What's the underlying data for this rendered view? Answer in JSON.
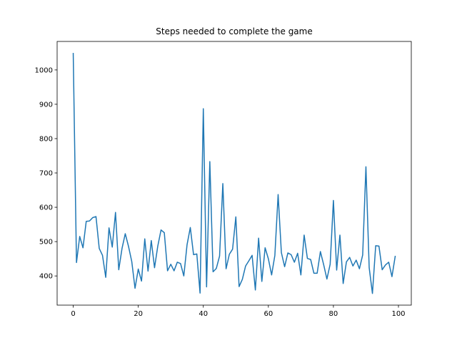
{
  "chart_data": {
    "type": "line",
    "title": "Steps needed to complete the game",
    "xlabel": "",
    "ylabel": "",
    "xlim": [
      -4.95,
      103.95
    ],
    "ylim": [
      315,
      1083
    ],
    "xticks": [
      0,
      20,
      40,
      60,
      80,
      100
    ],
    "yticks": [
      400,
      500,
      600,
      700,
      800,
      900,
      1000
    ],
    "grid": false,
    "line_color": "#1f77b4",
    "series": [
      {
        "x": [
          0,
          1,
          2,
          3,
          4,
          5,
          6,
          7,
          8,
          9,
          10,
          11,
          12,
          13,
          14,
          15,
          16,
          17,
          18,
          19,
          20,
          21,
          22,
          23,
          24,
          25,
          26,
          27,
          28,
          29,
          30,
          31,
          32,
          33,
          34,
          35,
          36,
          37,
          38,
          39,
          40,
          41,
          42,
          43,
          44,
          45,
          46,
          47,
          48,
          49,
          50,
          51,
          52,
          53,
          54,
          55,
          56,
          57,
          58,
          59,
          60,
          61,
          62,
          63,
          64,
          65,
          66,
          67,
          68,
          69,
          70,
          71,
          72,
          73,
          74,
          75,
          76,
          77,
          78,
          79,
          80,
          81,
          82,
          83,
          84,
          85,
          86,
          87,
          88,
          89,
          90,
          91,
          92,
          93,
          94,
          95,
          96,
          97,
          98,
          99
        ],
        "y": [
          1048,
          439,
          515,
          482,
          559,
          560,
          570,
          573,
          480,
          460,
          396,
          540,
          484,
          585,
          418,
          480,
          523,
          486,
          442,
          364,
          420,
          385,
          508,
          414,
          503,
          424,
          487,
          534,
          526,
          415,
          434,
          415,
          440,
          436,
          400,
          491,
          541,
          462,
          464,
          350,
          887,
          368,
          733,
          412,
          422,
          458,
          669,
          421,
          463,
          478,
          572,
          369,
          390,
          429,
          444,
          460,
          359,
          510,
          384,
          482,
          450,
          403,
          460,
          637,
          468,
          427,
          467,
          462,
          440,
          466,
          403,
          519,
          451,
          448,
          408,
          408,
          471,
          433,
          391,
          434,
          620,
          417,
          519,
          378,
          441,
          454,
          429,
          446,
          421,
          461,
          718,
          424,
          349,
          488,
          487,
          418,
          432,
          440,
          398,
          457
        ]
      }
    ]
  }
}
